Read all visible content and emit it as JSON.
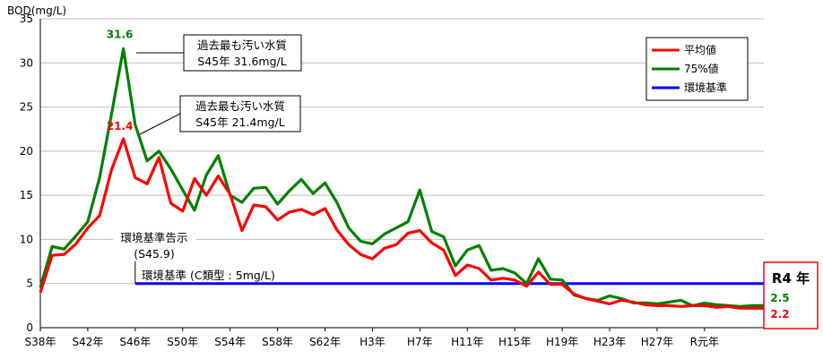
{
  "chart_data": {
    "type": "line",
    "ylabel": "BOD(mg/L)",
    "ylim": [
      0,
      35
    ],
    "yticks": [
      0,
      5,
      10,
      15,
      20,
      25,
      30,
      35
    ],
    "grid": true,
    "legend_position": "top-right",
    "xtick_labels": [
      "S38年",
      "S42年",
      "S46年",
      "S50年",
      "S54年",
      "S58年",
      "S62年",
      "H3年",
      "H7年",
      "H11年",
      "H15年",
      "H19年",
      "H23年",
      "H27年",
      "R元年"
    ],
    "series": [
      {
        "name": "平均値",
        "color": "#ff0000",
        "values": [
          4.0,
          8.2,
          8.3,
          9.5,
          11.3,
          12.7,
          17.9,
          21.4,
          17.0,
          16.3,
          19.3,
          14.1,
          13.2,
          16.9,
          15.0,
          17.2,
          15.1,
          11.0,
          13.9,
          13.7,
          12.2,
          13.1,
          13.4,
          12.8,
          13.5,
          11.1,
          9.4,
          8.3,
          7.8,
          9.0,
          9.4,
          10.7,
          11.0,
          9.6,
          8.8,
          5.9,
          7.1,
          6.7,
          5.4,
          5.6,
          5.4,
          4.7,
          6.3,
          4.9,
          4.9,
          3.8,
          3.3,
          3.0,
          2.7,
          3.1,
          2.9,
          2.6,
          2.5,
          2.5,
          2.4,
          2.5,
          2.5,
          2.3,
          2.4,
          2.2,
          2.2,
          2.2
        ]
      },
      {
        "name": "75%値",
        "color": "#008000",
        "values": [
          4.6,
          9.2,
          8.9,
          10.4,
          12.0,
          17.0,
          24.2,
          31.6,
          23.0,
          18.9,
          20.0,
          18.0,
          15.6,
          13.3,
          17.3,
          19.5,
          15.0,
          14.2,
          15.8,
          15.9,
          14.0,
          15.5,
          16.8,
          15.2,
          16.4,
          14.2,
          11.3,
          9.8,
          9.5,
          10.6,
          11.3,
          12.0,
          15.6,
          10.9,
          10.3,
          7.0,
          8.8,
          9.3,
          6.5,
          6.7,
          6.2,
          5.0,
          7.8,
          5.5,
          5.4,
          3.7,
          3.3,
          3.1,
          3.6,
          3.3,
          2.8,
          2.8,
          2.7,
          2.9,
          3.1,
          2.5,
          2.8,
          2.6,
          2.5,
          2.4,
          2.5,
          2.5
        ]
      },
      {
        "name": "環境基準",
        "color": "#0000ff",
        "start_index": 8,
        "value": 5.0
      }
    ],
    "annotations": {
      "peak_avg_label": "21.4",
      "peak_75_label": "31.6",
      "callout_75_line1": "過去最も汚い水質",
      "callout_75_line2": "S45年 31.6mg/L",
      "callout_avg_line1": "過去最も汚い水質",
      "callout_avg_line2": "S45年 21.4mg/L",
      "standard_notice_line1": "環境基準告示",
      "standard_notice_line2": "(S45.9)",
      "standard_line_label": "環境基準 (C類型 : 5mg/L)",
      "final_title": "R4 年",
      "final_75": "2.5",
      "final_avg": "2.2"
    }
  }
}
